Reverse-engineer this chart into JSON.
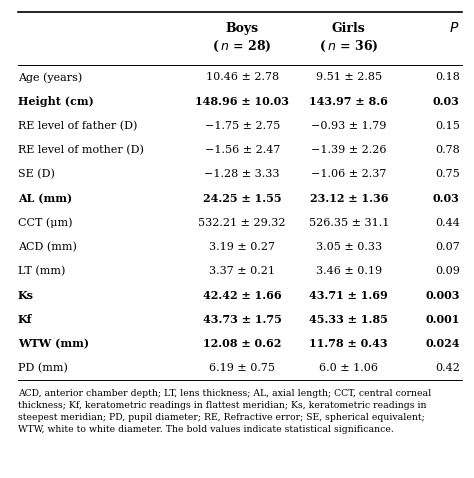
{
  "rows": [
    {
      "label": "Age (years)",
      "label_bold": false,
      "boys": "10.46 ± 2.78",
      "boys_bold": false,
      "girls": "9.51 ± 2.85",
      "girls_bold": false,
      "p": "0.18",
      "p_bold": false
    },
    {
      "label": "Height (cm)",
      "label_bold": true,
      "boys": "148.96 ± 10.03",
      "boys_bold": true,
      "girls": "143.97 ± 8.6",
      "girls_bold": true,
      "p": "0.03",
      "p_bold": true
    },
    {
      "label": "RE level of father (D)",
      "label_bold": false,
      "boys": "−1.75 ± 2.75",
      "boys_bold": false,
      "girls": "−0.93 ± 1.79",
      "girls_bold": false,
      "p": "0.15",
      "p_bold": false
    },
    {
      "label": "RE level of mother (D)",
      "label_bold": false,
      "boys": "−1.56 ± 2.47",
      "boys_bold": false,
      "girls": "−1.39 ± 2.26",
      "girls_bold": false,
      "p": "0.78",
      "p_bold": false
    },
    {
      "label": "SE (D)",
      "label_bold": false,
      "boys": "−1.28 ± 3.33",
      "boys_bold": false,
      "girls": "−1.06 ± 2.37",
      "girls_bold": false,
      "p": "0.75",
      "p_bold": false
    },
    {
      "label": "AL (mm)",
      "label_bold": true,
      "boys": "24.25 ± 1.55",
      "boys_bold": true,
      "girls": "23.12 ± 1.36",
      "girls_bold": true,
      "p": "0.03",
      "p_bold": true
    },
    {
      "label": "CCT (μm)",
      "label_bold": false,
      "boys": "532.21 ± 29.32",
      "boys_bold": false,
      "girls": "526.35 ± 31.1",
      "girls_bold": false,
      "p": "0.44",
      "p_bold": false
    },
    {
      "label": "ACD (mm)",
      "label_bold": false,
      "boys": "3.19 ± 0.27",
      "boys_bold": false,
      "girls": "3.05 ± 0.33",
      "girls_bold": false,
      "p": "0.07",
      "p_bold": false
    },
    {
      "label": "LT (mm)",
      "label_bold": false,
      "boys": "3.37 ± 0.21",
      "boys_bold": false,
      "girls": "3.46 ± 0.19",
      "girls_bold": false,
      "p": "0.09",
      "p_bold": false
    },
    {
      "label": "Ks",
      "label_bold": true,
      "boys": "42.42 ± 1.66",
      "boys_bold": true,
      "girls": "43.71 ± 1.69",
      "girls_bold": true,
      "p": "0.003",
      "p_bold": true
    },
    {
      "label": "Kf",
      "label_bold": true,
      "boys": "43.73 ± 1.75",
      "boys_bold": true,
      "girls": "45.33 ± 1.85",
      "girls_bold": true,
      "p": "0.001",
      "p_bold": true
    },
    {
      "label": "WTW (mm)",
      "label_bold": true,
      "boys": "12.08 ± 0.62",
      "boys_bold": true,
      "girls": "11.78 ± 0.43",
      "girls_bold": true,
      "p": "0.024",
      "p_bold": true
    },
    {
      "label": "PD (mm)",
      "label_bold": false,
      "boys": "6.19 ± 0.75",
      "boys_bold": false,
      "girls": "6.0 ± 1.06",
      "girls_bold": false,
      "p": "0.42",
      "p_bold": false
    }
  ],
  "footnote": "ACD, anterior chamber depth; LT, lens thickness; AL, axial length; CCT, central corneal thickness; Kf, keratometric readings in flattest meridian; Ks, keratometric readings in steepest meridian; PD, pupil diameter; RE, Refractive error; SE, spherical equivalent; WTW, white to white diameter. The bold values indicate statistical significance.",
  "bg_color": "#ffffff",
  "text_color": "#000000",
  "font_size": 8.0,
  "header_font_size": 9.0
}
